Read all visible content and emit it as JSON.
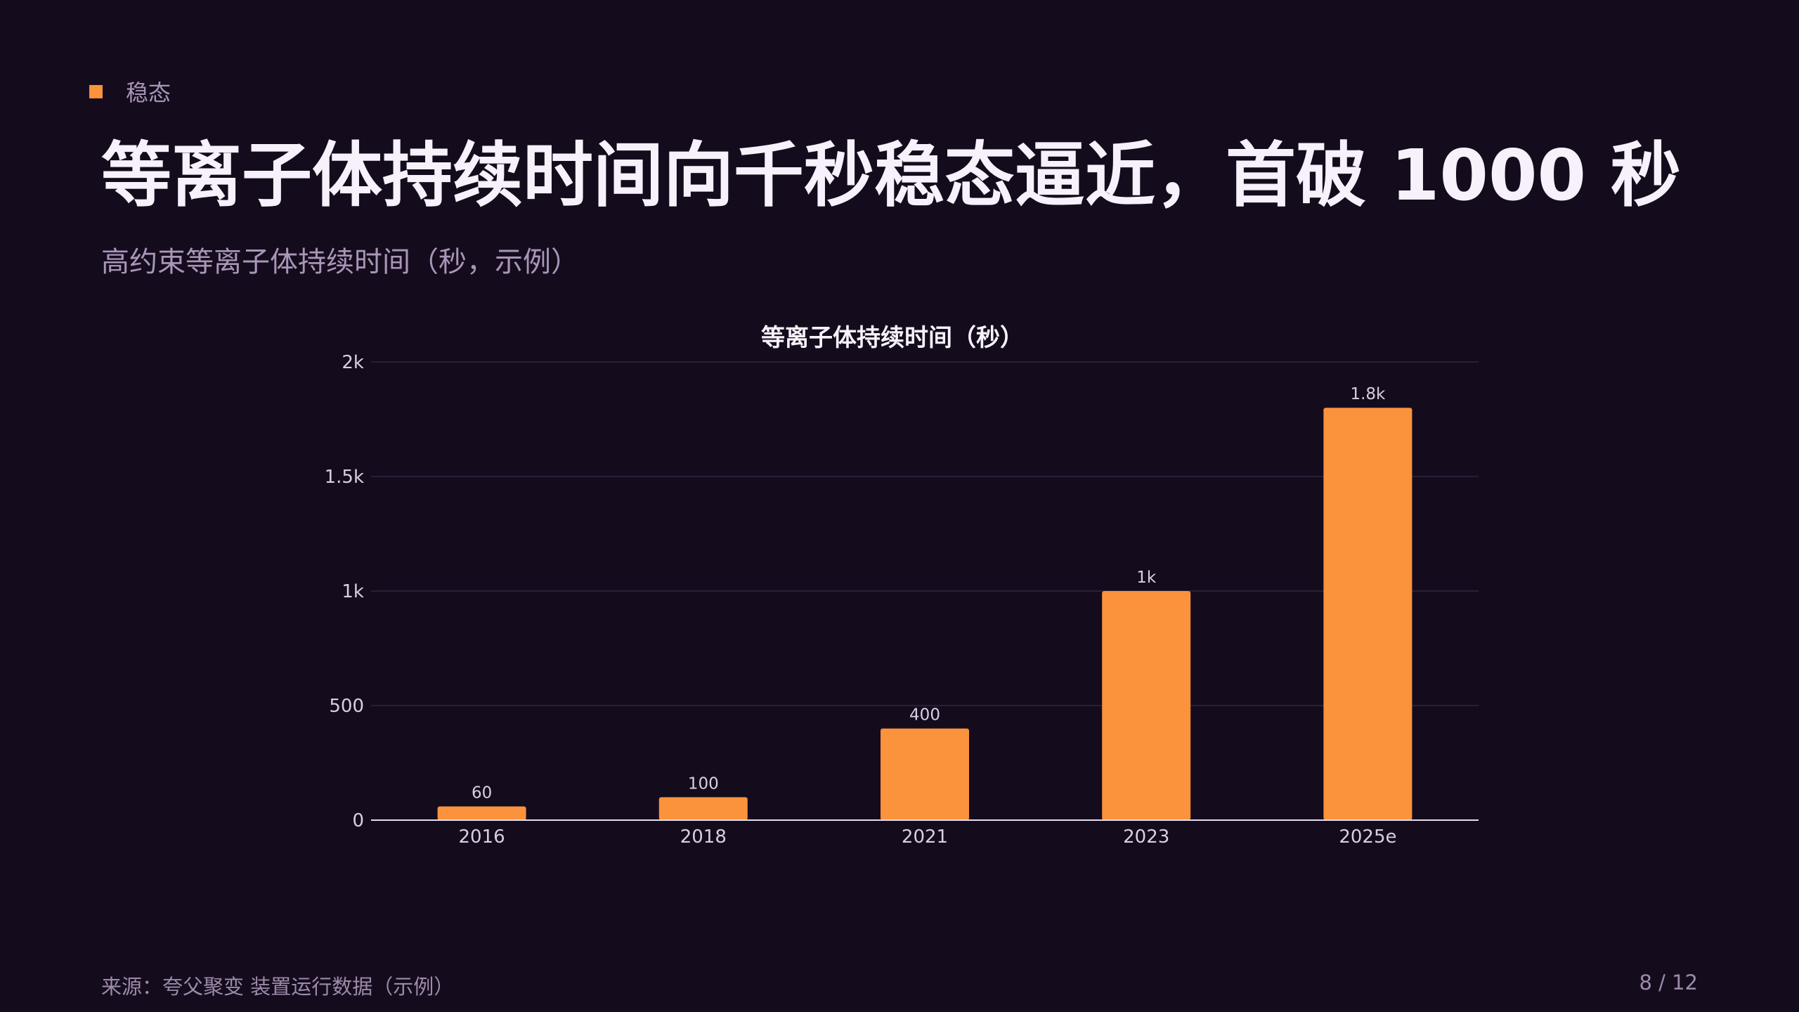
{
  "section": {
    "label": "稳态"
  },
  "headline": "等离子体持续时间向千秒稳态逼近，首破 1000 秒",
  "subtitle": "高约束等离子体持续时间（秒，示例）",
  "footer": {
    "source": "来源：夸父聚变 装置运行数据（示例）",
    "page": "8 / 12"
  },
  "colors": {
    "accent": "#fb923c",
    "background": "#140c1d"
  },
  "chart_data": {
    "type": "bar",
    "title": "等离子体持续时间（秒）",
    "xlabel": "",
    "ylabel": "",
    "categories": [
      "2016",
      "2018",
      "2021",
      "2023",
      "2025e"
    ],
    "values": [
      60,
      100,
      400,
      1000,
      1800
    ],
    "data_labels": [
      "60",
      "100",
      "400",
      "1k",
      "1.8k"
    ],
    "ylim": [
      0,
      2000
    ],
    "yticks": [
      0,
      500,
      1000,
      1500,
      2000
    ],
    "ytick_labels": [
      "0",
      "500",
      "1k",
      "1.5k",
      "2k"
    ],
    "grid": true,
    "legend": "none",
    "bar_color": "#fb923c"
  }
}
